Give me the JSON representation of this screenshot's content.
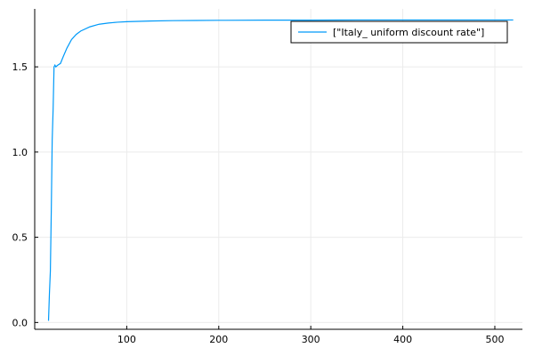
{
  "chart_data": {
    "type": "line",
    "title": "",
    "xlabel": "",
    "ylabel": "",
    "xlim": [
      0,
      530
    ],
    "ylim": [
      -0.04,
      1.84
    ],
    "x_ticks": [
      100,
      200,
      300,
      400,
      500
    ],
    "y_ticks": [
      0.0,
      0.5,
      1.0,
      1.5
    ],
    "x_tick_labels": [
      "100",
      "200",
      "300",
      "400",
      "500"
    ],
    "y_tick_labels": [
      "0.0",
      "0.5",
      "1.0",
      "1.5"
    ],
    "grid": true,
    "legend_position": "top-right",
    "series": [
      {
        "name": "[\"Italy_ uniform discount rate\"]",
        "color": "#009af9",
        "x": [
          15,
          16,
          17,
          18,
          19,
          20,
          21,
          22,
          23,
          25,
          28,
          31,
          35,
          40,
          45,
          50,
          60,
          70,
          80,
          90,
          100,
          125,
          150,
          175,
          200,
          250,
          300,
          350,
          400,
          450,
          500,
          520
        ],
        "y": [
          0.01,
          0.17,
          0.3,
          0.65,
          1.07,
          1.25,
          1.5,
          1.51,
          1.5,
          1.51,
          1.52,
          1.56,
          1.61,
          1.66,
          1.69,
          1.71,
          1.735,
          1.75,
          1.757,
          1.762,
          1.765,
          1.769,
          1.771,
          1.772,
          1.773,
          1.774,
          1.774,
          1.775,
          1.775,
          1.775,
          1.775,
          1.775
        ]
      }
    ]
  }
}
